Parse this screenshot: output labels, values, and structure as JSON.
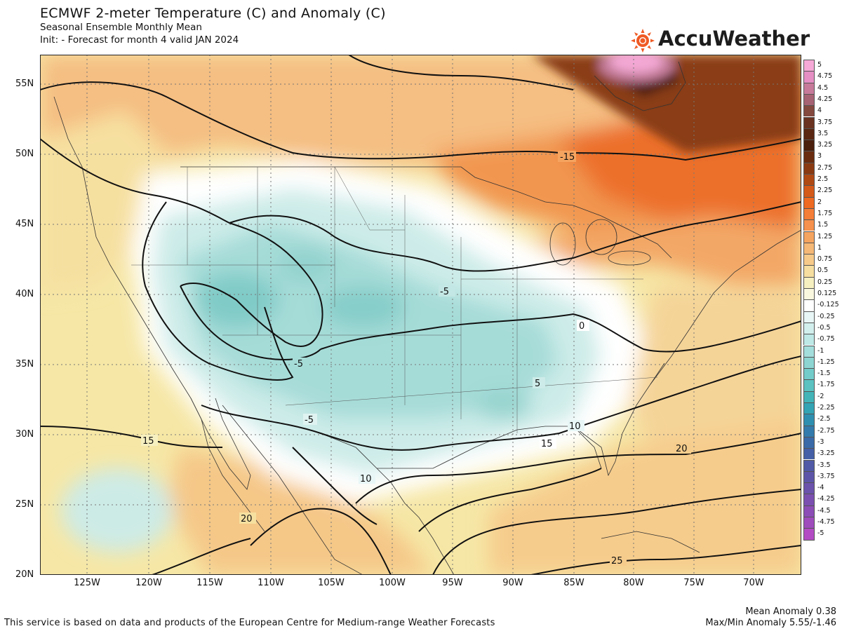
{
  "header": {
    "title": "ECMWF 2-meter Temperature (C) and Anomaly (C)",
    "subtitle": "Seasonal Ensemble Monthly Mean",
    "init": "Init:   - Forecast for month 4 valid JAN 2024"
  },
  "brand": {
    "name": "AccuWeather",
    "icon": "sun-icon",
    "color": "#ef5a24"
  },
  "axes": {
    "lat_labels": [
      "55N",
      "50N",
      "45N",
      "40N",
      "35N",
      "30N",
      "25N",
      "20N"
    ],
    "lon_labels": [
      "125W",
      "120W",
      "115W",
      "110W",
      "105W",
      "100W",
      "95W",
      "90W",
      "85W",
      "80W",
      "75W",
      "70W"
    ]
  },
  "contour_labels": [
    "-15",
    "-5",
    "-5",
    "0",
    "-5",
    "5",
    "10",
    "15",
    "15",
    "20",
    "10",
    "20",
    "25"
  ],
  "legend": {
    "values": [
      "5",
      "4.75",
      "4.5",
      "4.25",
      "4",
      "3.75",
      "3.5",
      "3.25",
      "3",
      "2.75",
      "2.5",
      "2.25",
      "2",
      "1.75",
      "1.5",
      "1.25",
      "1",
      "0.75",
      "0.5",
      "0.25",
      "0.125",
      "-0.125",
      "-0.25",
      "-0.5",
      "-0.75",
      "-1",
      "-1.25",
      "-1.5",
      "-1.75",
      "-2",
      "-2.25",
      "-2.5",
      "-2.75",
      "-3",
      "-3.25",
      "-3.5",
      "-3.75",
      "-4",
      "-4.25",
      "-4.5",
      "-4.75",
      "-5"
    ],
    "colors": [
      "#f6a9d6",
      "#e58fc4",
      "#c77a9a",
      "#a66373",
      "#84493f",
      "#6a3321",
      "#5a2712",
      "#4a1f0c",
      "#6a2c10",
      "#8a3a12",
      "#b04a15",
      "#d45a1a",
      "#ee6a22",
      "#f47d38",
      "#f5914c",
      "#f5a460",
      "#f5b876",
      "#f7ca8a",
      "#f6dea0",
      "#f6efc0",
      "#fbf8e0",
      "#ffffff",
      "#e8f6f6",
      "#d2efee",
      "#bde8e6",
      "#a4dedc",
      "#8cd5d3",
      "#74ccca",
      "#5bc2c1",
      "#43b5b8",
      "#33a4b4",
      "#2f8fb0",
      "#337bac",
      "#3a6aa8",
      "#4560a6",
      "#505aa6",
      "#5d56a8",
      "#6b52ab",
      "#7b4fb0",
      "#8c4db6",
      "#9f4cbd",
      "#b34cc4"
    ]
  },
  "footer": {
    "attribution": "This service is based on data and products of the European Centre for Medium-range Weather Forecasts",
    "mean_anomaly": "Mean Anomaly 0.38",
    "maxmin_anomaly": "Max/Min Anomaly 5.55/-1.46"
  }
}
